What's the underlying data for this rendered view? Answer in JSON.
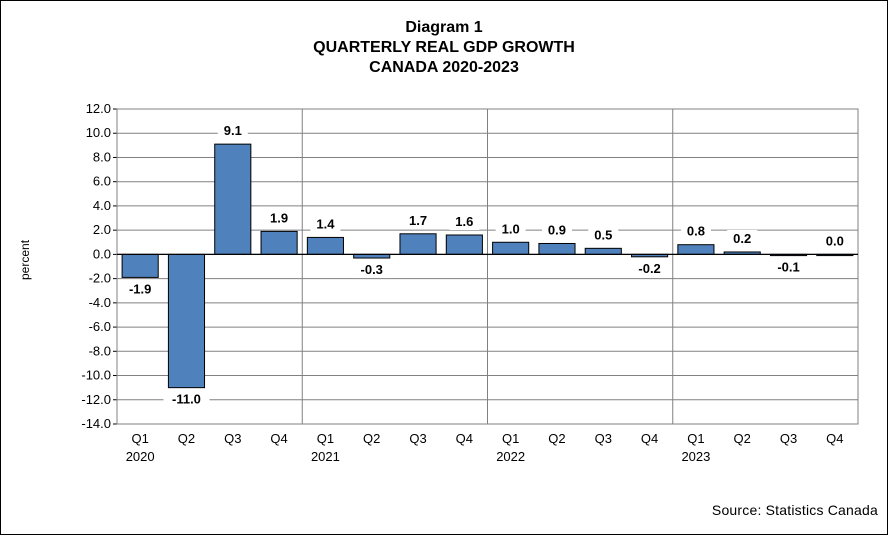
{
  "chart_data": {
    "type": "bar",
    "title_lines": [
      "Diagram 1",
      "QUARTERLY  REAL  GDP GROWTH",
      "CANADA  2020-2023"
    ],
    "ylabel": "percent",
    "xlabel": "",
    "ylim": [
      -14.0,
      12.0
    ],
    "ytick_step": 2.0,
    "ytick_labels": [
      "12.0",
      "10.0",
      "8.0",
      "6.0",
      "4.0",
      "2.0",
      "0.0",
      "-2.0",
      "-4.0",
      "-6.0",
      "-8.0",
      "-10.0",
      "-12.0",
      "-14.0"
    ],
    "grid": true,
    "quarter_labels": [
      "Q1",
      "Q2",
      "Q3",
      "Q4",
      "Q1",
      "Q2",
      "Q3",
      "Q4",
      "Q1",
      "Q2",
      "Q3",
      "Q4",
      "Q1",
      "Q2",
      "Q3",
      "Q4"
    ],
    "year_labels": [
      "2020",
      "2021",
      "2022",
      "2023"
    ],
    "values": [
      -1.9,
      -11.0,
      9.1,
      1.9,
      1.4,
      -0.3,
      1.7,
      1.6,
      1.0,
      0.9,
      0.5,
      -0.2,
      0.8,
      0.2,
      -0.1,
      0.0
    ],
    "value_labels": [
      "-1.9",
      "-11.0",
      "9.1",
      "1.9",
      "1.4",
      "-0.3",
      "1.7",
      "1.6",
      "1.0",
      "0.9",
      "0.5",
      "-0.2",
      "0.8",
      "0.2",
      "-0.1",
      "0.0"
    ],
    "bar_color": "#4F81BD"
  },
  "source": "Source: Statistics Canada"
}
